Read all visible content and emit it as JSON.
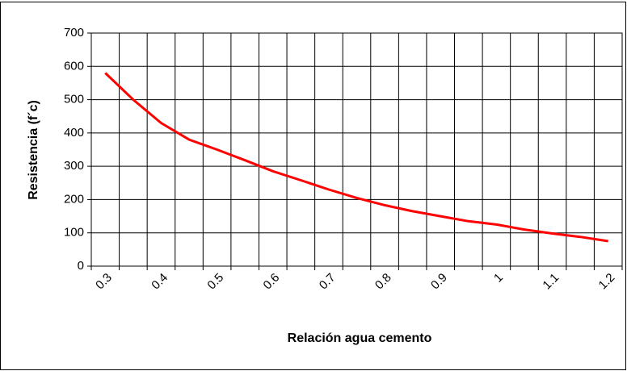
{
  "chart_data": {
    "type": "line",
    "x_label": "Relación agua cemento",
    "y_label": "Resistencia (f´c)",
    "categories": [
      "0.3",
      null,
      "0.4",
      null,
      "0.5",
      null,
      "0.6",
      null,
      "0.7",
      null,
      "0.8",
      null,
      "0.9",
      null,
      "1",
      null,
      "1.1",
      null,
      "1.2"
    ],
    "values": [
      580,
      500,
      430,
      380,
      350,
      318,
      285,
      258,
      230,
      205,
      183,
      165,
      150,
      135,
      125,
      110,
      98,
      88,
      75
    ],
    "color": "#ff0000",
    "ylim": [
      0,
      700
    ],
    "yticks": [
      0,
      100,
      200,
      300,
      400,
      500,
      600,
      700
    ],
    "grid": true
  }
}
